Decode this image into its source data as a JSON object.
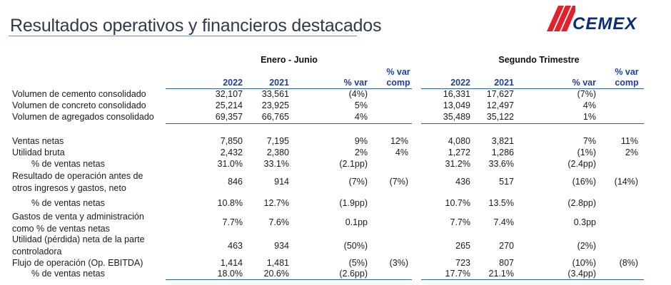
{
  "title": "Resultados operativos y financieros destacados",
  "logo": {
    "text": "CEMEX",
    "brand_color": "#0b2c78",
    "accent_color": "#e4202a"
  },
  "groups": {
    "h1": "Enero - Junio",
    "h2": "Segundo Trimestre"
  },
  "columns": {
    "h1": {
      "y1": "2022",
      "y2": "2021",
      "var": "% var",
      "comp": "% var comp"
    },
    "h2": {
      "y1": "2022",
      "y2": "2021",
      "var": "% var",
      "comp": "% var comp"
    }
  },
  "rows": [
    {
      "label": "Volumen de cemento consolidado",
      "values": [
        "32,107",
        "33,561",
        "(4%)",
        "",
        "16,331",
        "17,627",
        "(7%)",
        ""
      ]
    },
    {
      "label": "Volumen de concreto consolidado",
      "values": [
        "25,214",
        "23,925",
        "5%",
        "",
        "13,049",
        "12,497",
        "4%",
        ""
      ]
    },
    {
      "label": "Volumen de agregados consolidado",
      "values": [
        "69,357",
        "66,765",
        "4%",
        "",
        "35,489",
        "35,122",
        "1%",
        ""
      ]
    },
    {
      "label": "Ventas netas",
      "values": [
        "7,850",
        "7,195",
        "9%",
        "12%",
        "4,080",
        "3,821",
        "7%",
        "11%"
      ]
    },
    {
      "label": "Utilidad bruta",
      "values": [
        "2,432",
        "2,380",
        "2%",
        "4%",
        "1,272",
        "1,286",
        "(1%)",
        "2%"
      ]
    },
    {
      "label": "% de ventas netas",
      "values": [
        "31.0%",
        "33.1%",
        "(2.1pp)",
        "",
        "31.2%",
        "33.6%",
        "(2.4pp)",
        ""
      ]
    },
    {
      "label_line1": "Resultado de operación antes de",
      "label_line2": "otros ingresos y gastos, neto",
      "values": [
        "846",
        "914",
        "(7%)",
        "(7%)",
        "436",
        "517",
        "(16%)",
        "(14%)"
      ]
    },
    {
      "label": "% de ventas netas",
      "values": [
        "10.8%",
        "12.7%",
        "(1.9pp)",
        "",
        "10.7%",
        "13.5%",
        "(2.8pp)",
        ""
      ]
    },
    {
      "label_line1": "Gastos de venta y administración",
      "label_line2": "como % de ventas netas",
      "values": [
        "7.7%",
        "7.6%",
        "0.1pp",
        "",
        "7.7%",
        "7.4%",
        "0.3pp",
        ""
      ]
    },
    {
      "label_line1": "Utilidad (pérdida) neta de la parte",
      "label_line2": "controladora",
      "values": [
        "463",
        "934",
        "(50%)",
        "",
        "265",
        "270",
        "(2%)",
        ""
      ]
    },
    {
      "label": "Flujo de operación (Op. EBITDA)",
      "values": [
        "1,414",
        "1,481",
        "(5%)",
        "(3%)",
        "723",
        "807",
        "(10%)",
        "(8%)"
      ]
    },
    {
      "label": "% de ventas netas",
      "values": [
        "18.0%",
        "20.6%",
        "(2.6pp)",
        "",
        "17.7%",
        "21.1%",
        "(3.4pp)",
        ""
      ]
    }
  ]
}
